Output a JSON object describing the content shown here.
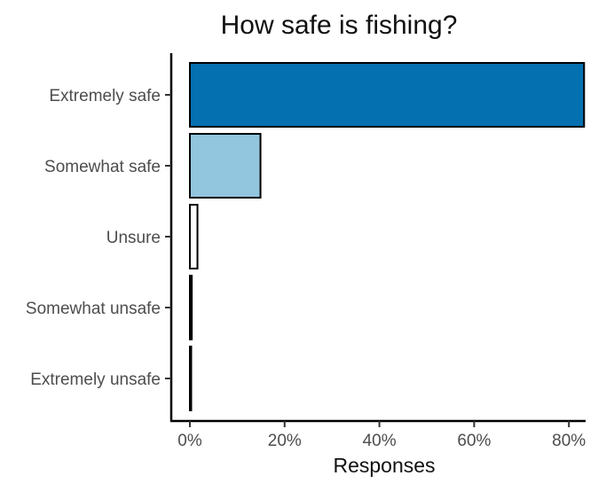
{
  "chart_data": {
    "type": "bar",
    "orientation": "horizontal",
    "title": "How safe is fishing?",
    "xlabel": "Responses",
    "ylabel": "",
    "categories": [
      "Extremely safe",
      "Somewhat safe",
      "Unsure",
      "Somewhat unsafe",
      "Extremely unsafe"
    ],
    "values": [
      83.2,
      14.9,
      1.6,
      0.4,
      0.2
    ],
    "value_unit": "%",
    "colors": [
      "#0570b0",
      "#92c5de",
      "#ffffff",
      "#543005",
      "#1a1a1a"
    ],
    "xlim": [
      0,
      84
    ],
    "xticks": [
      0,
      20,
      40,
      60,
      80
    ],
    "xtick_labels": [
      "0%",
      "20%",
      "40%",
      "60%",
      "80%"
    ],
    "grid": false,
    "legend": "none"
  }
}
